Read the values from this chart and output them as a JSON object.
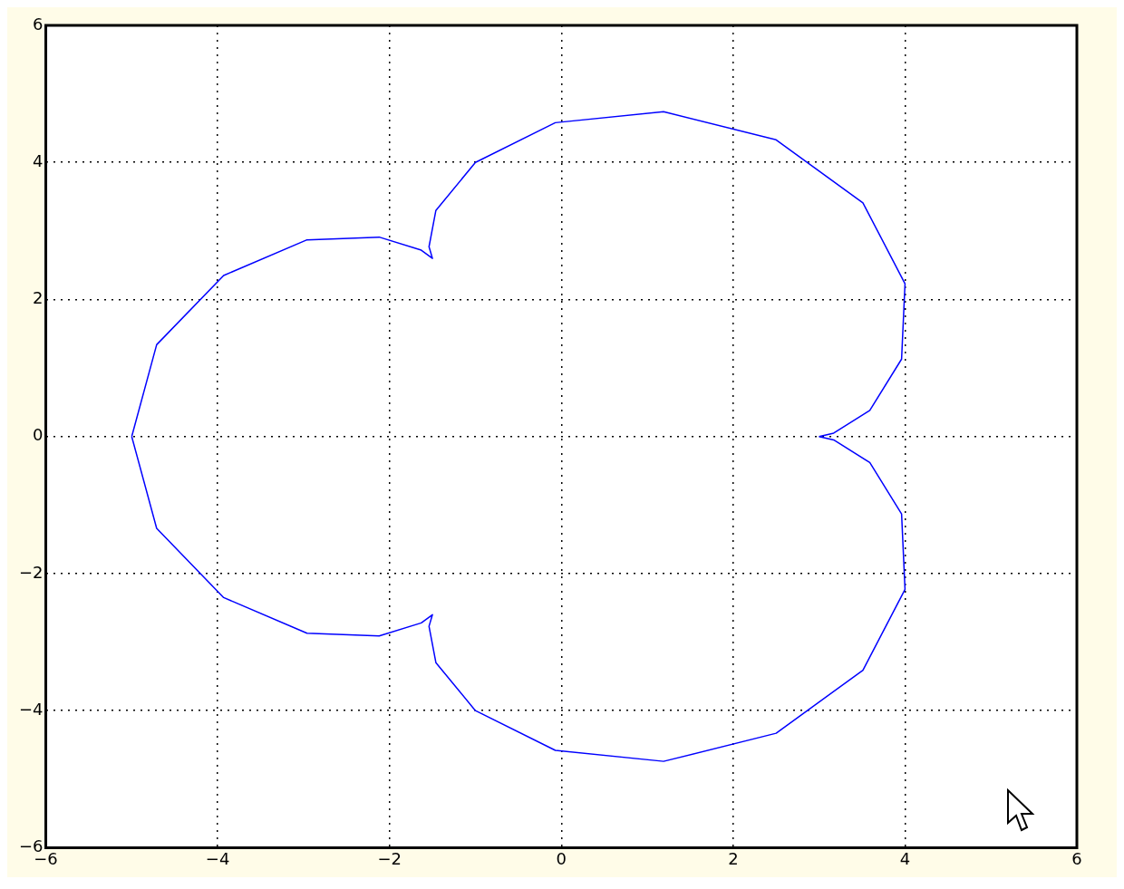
{
  "chart_data": {
    "type": "line",
    "xlim": [
      -6,
      6
    ],
    "ylim": [
      -6,
      6
    ],
    "xticks": [
      -6,
      -4,
      -2,
      0,
      2,
      4,
      6
    ],
    "yticks": [
      -6,
      -4,
      -2,
      0,
      2,
      4,
      6
    ],
    "grid": true,
    "marker": "none",
    "line_style": "solid",
    "series": [
      {
        "color": "#0000ff",
        "x": [
          3,
          3.17,
          3.59,
          3.96,
          4.0,
          3.51,
          2.5,
          1.19,
          -0.07,
          -1,
          -1.46,
          -1.54,
          -1.5,
          -1.63,
          -2.12,
          -2.96,
          -3.93,
          -4.71,
          -5
        ],
        "values": [
          0,
          0.05,
          0.38,
          1.13,
          2.23,
          3.41,
          4.33,
          4.74,
          4.58,
          4,
          3.3,
          2.77,
          2.6,
          2.72,
          2.91,
          2.87,
          2.35,
          1.34,
          0
        ]
      },
      {
        "color": "#0000ff",
        "x": [
          -5,
          -4.71,
          -3.93,
          -2.96,
          -2.12,
          -1.63,
          -1.5,
          -1.54,
          -1.46,
          -1,
          -0.07,
          1.19,
          2.5,
          3.51,
          4.0,
          3.96,
          3.59,
          3.17,
          3
        ],
        "values": [
          0,
          -1.34,
          -2.35,
          -2.87,
          -2.91,
          -2.72,
          -2.6,
          -2.77,
          -3.3,
          -4,
          -4.58,
          -4.74,
          -4.33,
          -3.41,
          -2.23,
          -1.13,
          -0.38,
          -0.05,
          0
        ]
      }
    ]
  }
}
